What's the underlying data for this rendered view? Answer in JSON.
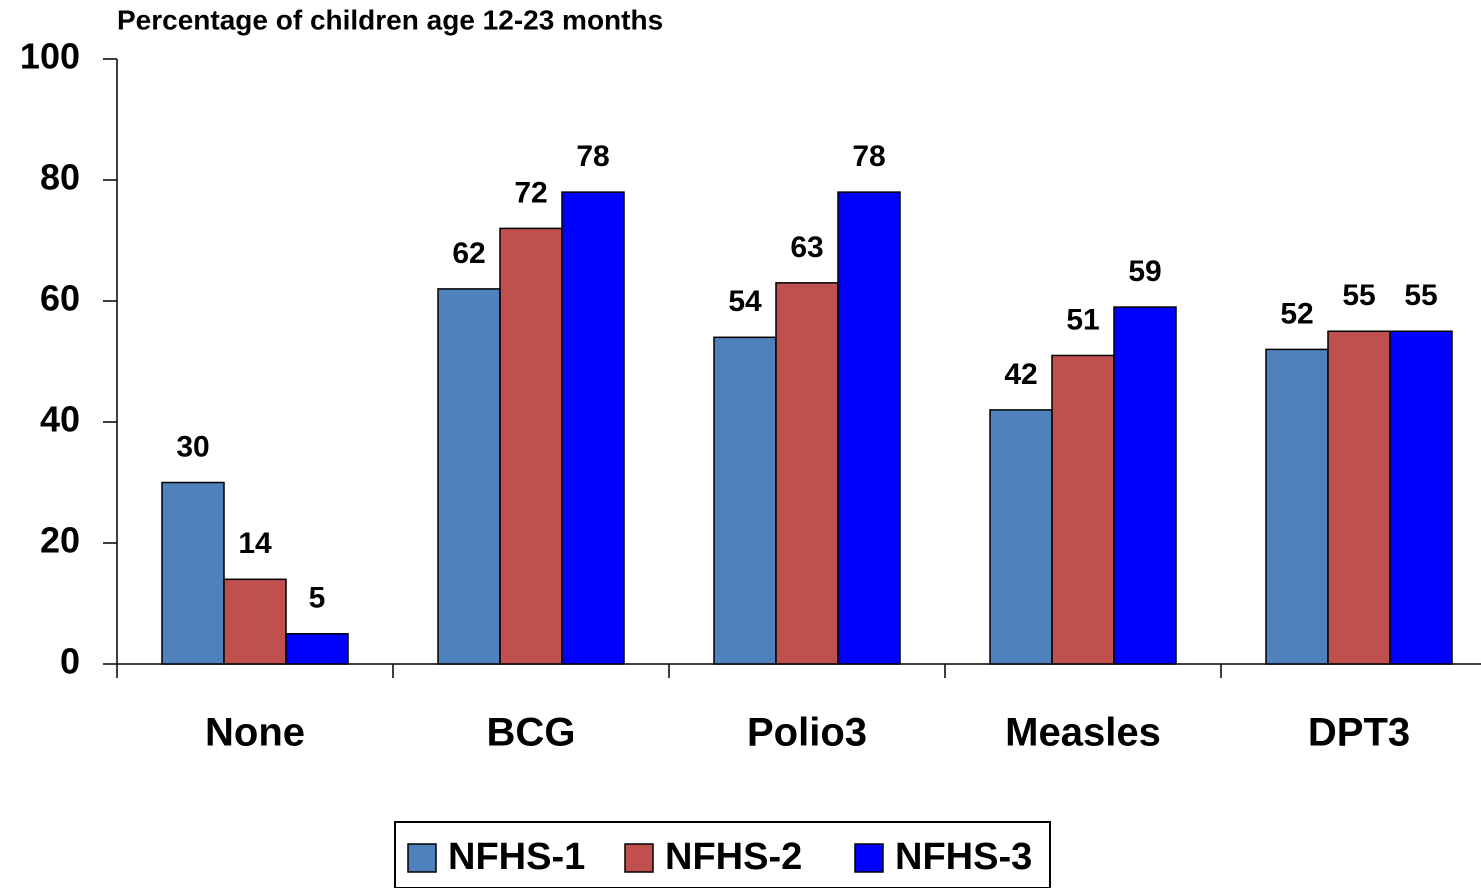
{
  "chart_data": {
    "type": "bar",
    "title": "Percentage of children age 12-23 months",
    "categories": [
      "None",
      "BCG",
      "Polio3",
      "Measles",
      "DPT3"
    ],
    "series": [
      {
        "name": "NFHS-1",
        "color": "#4f81bd",
        "values": [
          30,
          62,
          54,
          42,
          52
        ]
      },
      {
        "name": "NFHS-2",
        "color": "#c0504d",
        "values": [
          14,
          72,
          63,
          51,
          55
        ]
      },
      {
        "name": "NFHS-3",
        "color": "#0000ff",
        "values": [
          5,
          78,
          78,
          59,
          55
        ]
      }
    ],
    "ylim": [
      0,
      100
    ],
    "yticks": [
      0,
      20,
      40,
      60,
      80,
      100
    ],
    "grid": false,
    "legend": "bottom"
  }
}
